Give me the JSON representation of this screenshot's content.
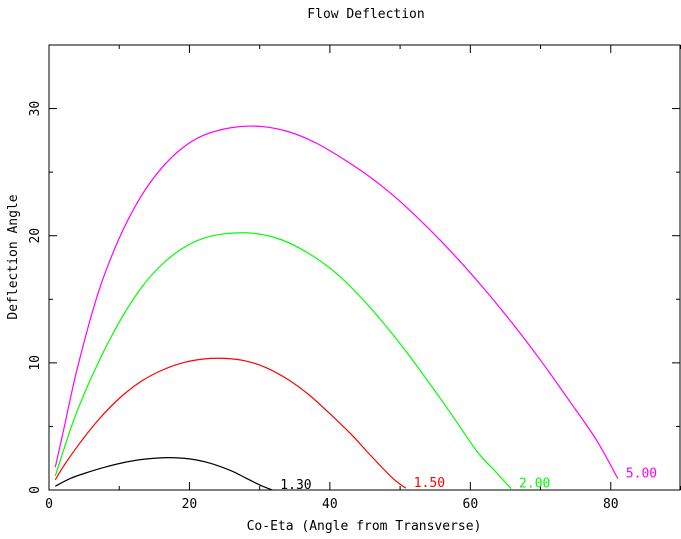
{
  "chart_data": {
    "type": "line",
    "title": "Flow Deflection",
    "xlabel": "Co-Eta (Angle from Transverse)",
    "ylabel": "Deflection Angle",
    "xlim": [
      0,
      90
    ],
    "ylim": [
      0,
      35
    ],
    "xticks": [
      0,
      20,
      40,
      60,
      80
    ],
    "yticks": [
      0,
      10,
      20,
      30
    ],
    "xtick_labels": [
      "0",
      "20",
      "40",
      "60",
      "80"
    ],
    "ytick_labels": [
      "0",
      "10",
      "20",
      "30"
    ],
    "grid": false,
    "series": [
      {
        "name": "1.30",
        "color": "#000000",
        "x": [
          0.9,
          3,
          5,
          8,
          11,
          14,
          17,
          20,
          23,
          26,
          28,
          30,
          31.8
        ],
        "y": [
          0.3,
          0.9,
          1.3,
          1.8,
          2.2,
          2.45,
          2.55,
          2.45,
          2.1,
          1.5,
          0.95,
          0.4,
          0.0
        ]
      },
      {
        "name": "1.50",
        "color": "#ff0000",
        "x": [
          0.9,
          2,
          4,
          7,
          10,
          13,
          16,
          19,
          22,
          25,
          28,
          31,
          34,
          37,
          40,
          43,
          46,
          49,
          50.8
        ],
        "y": [
          0.8,
          1.8,
          3.4,
          5.5,
          7.2,
          8.5,
          9.4,
          10.0,
          10.3,
          10.35,
          10.15,
          9.6,
          8.7,
          7.5,
          6.0,
          4.4,
          2.6,
          0.9,
          0.15
        ]
      },
      {
        "name": "2.00",
        "color": "#00ff00",
        "x": [
          0.9,
          2,
          4,
          7,
          10,
          13,
          16,
          19,
          22,
          25,
          29,
          33,
          37,
          41,
          45,
          49,
          53,
          57,
          61,
          63.5,
          65.8
        ],
        "y": [
          1.1,
          3.0,
          6.2,
          10.0,
          13.2,
          15.8,
          17.7,
          19.0,
          19.8,
          20.15,
          20.2,
          19.7,
          18.6,
          17.0,
          14.8,
          12.2,
          9.3,
          6.2,
          3.0,
          1.5,
          0.1
        ]
      },
      {
        "name": "5.00",
        "color": "#ff00ff",
        "x": [
          0.9,
          2,
          4,
          7,
          10,
          13,
          16,
          19,
          22,
          26,
          30,
          34,
          38,
          42,
          46,
          50,
          54,
          58,
          62,
          66,
          70,
          74,
          78,
          81
        ],
        "y": [
          1.8,
          4.5,
          9.5,
          15.5,
          19.8,
          23.0,
          25.3,
          26.9,
          27.9,
          28.5,
          28.6,
          28.2,
          27.3,
          26.0,
          24.5,
          22.7,
          20.6,
          18.3,
          15.8,
          13.1,
          10.2,
          7.1,
          3.9,
          0.9
        ]
      }
    ],
    "curve_labels": [
      "1.30",
      "1.50",
      "2.00",
      "5.00"
    ]
  }
}
